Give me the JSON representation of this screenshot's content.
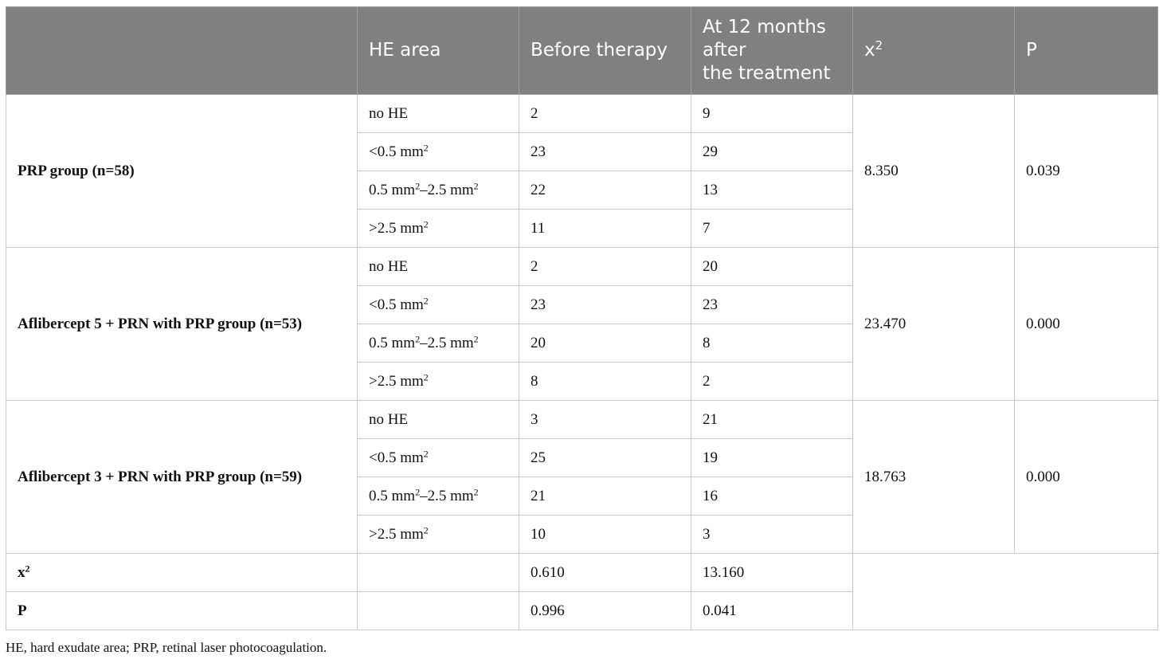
{
  "header": {
    "empty": "",
    "he_area": "HE area",
    "before": "Before therapy",
    "after_line1": "At 12 months",
    "after_line2": "after",
    "after_line3": "the treatment",
    "chi_base": "x",
    "chi_sup": "2",
    "p": "P"
  },
  "groups": [
    {
      "name": "PRP group (n=58)",
      "chi2": "8.350",
      "p": "0.039",
      "rows": [
        {
          "area": "no HE",
          "area_sup": "",
          "area_mid": "",
          "area_sup2": "",
          "before": "2",
          "after": "9"
        },
        {
          "area": "<0.5 mm",
          "area_sup": "2",
          "area_mid": "",
          "area_sup2": "",
          "before": "23",
          "after": "29"
        },
        {
          "area": "0.5 mm",
          "area_sup": "2",
          "area_mid": "–2.5 mm",
          "area_sup2": "2",
          "before": "22",
          "after": "13"
        },
        {
          "area": ">2.5 mm",
          "area_sup": "2",
          "area_mid": "",
          "area_sup2": "",
          "before": "11",
          "after": "7"
        }
      ]
    },
    {
      "name": "Aflibercept 5 + PRN with PRP group (n=53)",
      "chi2": "23.470",
      "p": "0.000",
      "rows": [
        {
          "area": "no HE",
          "area_sup": "",
          "area_mid": "",
          "area_sup2": "",
          "before": "2",
          "after": "20"
        },
        {
          "area": "<0.5 mm",
          "area_sup": "2",
          "area_mid": "",
          "area_sup2": "",
          "before": "23",
          "after": "23"
        },
        {
          "area": "0.5 mm",
          "area_sup": "2",
          "area_mid": "–2.5 mm",
          "area_sup2": "2",
          "before": "20",
          "after": "8"
        },
        {
          "area": ">2.5 mm",
          "area_sup": "2",
          "area_mid": "",
          "area_sup2": "",
          "before": "8",
          "after": "2"
        }
      ]
    },
    {
      "name": "Aflibercept 3 + PRN with PRP group (n=59)",
      "chi2": "18.763",
      "p": "0.000",
      "rows": [
        {
          "area": "no HE",
          "area_sup": "",
          "area_mid": "",
          "area_sup2": "",
          "before": "3",
          "after": "21"
        },
        {
          "area": "<0.5 mm",
          "area_sup": "2",
          "area_mid": "",
          "area_sup2": "",
          "before": "25",
          "after": "19"
        },
        {
          "area": "0.5 mm",
          "area_sup": "2",
          "area_mid": "–2.5 mm",
          "area_sup2": "2",
          "before": "21",
          "after": "16"
        },
        {
          "area": ">2.5 mm",
          "area_sup": "2",
          "area_mid": "",
          "area_sup2": "",
          "before": "10",
          "after": "3"
        }
      ]
    }
  ],
  "summary": {
    "chi_label": "x",
    "chi_sup": "2",
    "chi_before": "0.610",
    "chi_after": "13.160",
    "p_label": "P",
    "p_before": "0.996",
    "p_after": "0.041"
  },
  "footnote": "HE, hard exudate area; PRP, retinal laser photocoagulation."
}
